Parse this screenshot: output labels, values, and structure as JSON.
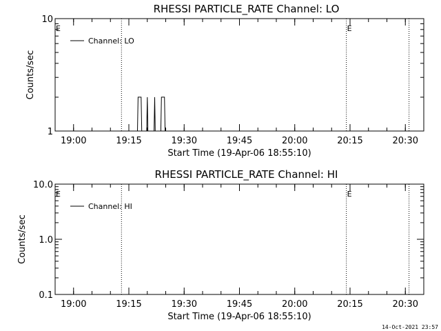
{
  "chart_data": [
    {
      "type": "line",
      "title": "RHESSI PARTICLE_RATE Channel: LO",
      "xlabel": "Start Time (19-Apr-06 18:55:10)",
      "ylabel": "Counts/sec",
      "y_scale": "log",
      "ylim": [
        1,
        10
      ],
      "y_ticks": [
        {
          "value": 1,
          "label": "1"
        },
        {
          "value": 10,
          "label": "10"
        }
      ],
      "x_range": [
        "18:55",
        "20:35"
      ],
      "x_ticks": [
        "19:00",
        "19:15",
        "19:30",
        "19:45",
        "20:00",
        "20:15",
        "20:30"
      ],
      "legend": {
        "position": "top-left",
        "label": "Channel: LO"
      },
      "event_lines": [
        {
          "time": "19:13",
          "flag": ""
        },
        {
          "time": "20:14",
          "flag": "E"
        },
        {
          "time": "20:31",
          "flag": ""
        }
      ],
      "start_flag": "E",
      "series": [
        {
          "name": "Channel: LO",
          "points": [
            [
              "19:17:20",
              1
            ],
            [
              "19:17:30",
              2
            ],
            [
              "19:18:20",
              2
            ],
            [
              "19:18:30",
              1
            ],
            [
              "19:19:50",
              1
            ],
            [
              "19:20:00",
              2
            ],
            [
              "19:20:10",
              1
            ],
            [
              "19:21:50",
              1
            ],
            [
              "19:22:00",
              2
            ],
            [
              "19:22:10",
              1
            ],
            [
              "19:23:40",
              1
            ],
            [
              "19:23:50",
              2
            ],
            [
              "19:24:40",
              2
            ],
            [
              "19:24:50",
              1
            ]
          ]
        }
      ]
    },
    {
      "type": "line",
      "title": "RHESSI PARTICLE_RATE Channel: HI",
      "xlabel": "Start Time (19-Apr-06 18:55:10)",
      "ylabel": "Counts/sec",
      "y_scale": "log",
      "ylim": [
        0.1,
        10
      ],
      "y_ticks": [
        {
          "value": 0.1,
          "label": "0.1"
        },
        {
          "value": 1,
          "label": "1.0"
        },
        {
          "value": 10,
          "label": "10.0"
        }
      ],
      "x_range": [
        "18:55",
        "20:35"
      ],
      "x_ticks": [
        "19:00",
        "19:15",
        "19:30",
        "19:45",
        "20:00",
        "20:15",
        "20:30"
      ],
      "legend": {
        "position": "top-left",
        "label": "Channel: HI"
      },
      "event_lines": [
        {
          "time": "19:13",
          "flag": ""
        },
        {
          "time": "20:14",
          "flag": "E"
        },
        {
          "time": "20:31",
          "flag": ""
        }
      ],
      "start_flag": "E",
      "series": [
        {
          "name": "Channel: HI",
          "points": []
        }
      ]
    }
  ],
  "footer": {
    "timestamp": "14-Oct-2021 23:57"
  }
}
